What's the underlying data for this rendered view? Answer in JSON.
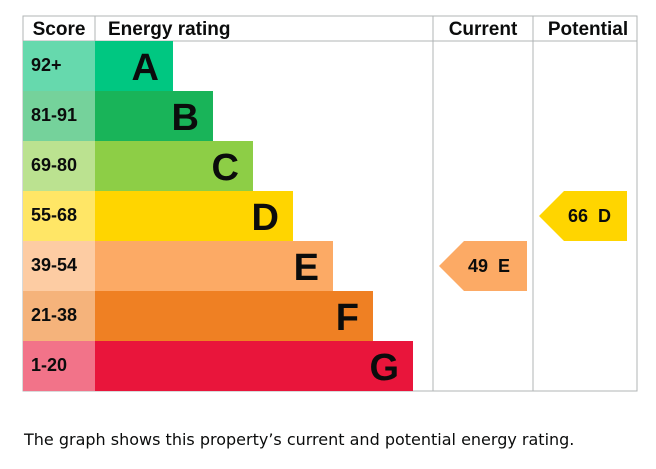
{
  "chart_data": {
    "type": "bar",
    "headers": {
      "score": "Score",
      "rating": "Energy rating",
      "current": "Current",
      "potential": "Potential"
    },
    "bands": [
      {
        "letter": "A",
        "range": "92+",
        "color": "#00c781",
        "score_color": "#66d9ad"
      },
      {
        "letter": "B",
        "range": "81-91",
        "color": "#19b459",
        "score_color": "#75d29b"
      },
      {
        "letter": "C",
        "range": "69-80",
        "color": "#8dce46",
        "score_color": "#bbe290"
      },
      {
        "letter": "D",
        "range": "55-68",
        "color": "#ffd500",
        "score_color": "#ffe666"
      },
      {
        "letter": "E",
        "range": "39-54",
        "color": "#fcaa65",
        "score_color": "#fdcca3"
      },
      {
        "letter": "F",
        "range": "21-38",
        "color": "#ef8023",
        "score_color": "#f5b37b"
      },
      {
        "letter": "G",
        "range": "1-20",
        "color": "#e9153b",
        "score_color": "#f27389"
      }
    ],
    "current": {
      "value": 49,
      "band": "E",
      "label": "49  E"
    },
    "potential": {
      "value": 66,
      "band": "D",
      "label": "66  D"
    }
  },
  "caption": "The graph shows this property’s current and potential energy rating."
}
